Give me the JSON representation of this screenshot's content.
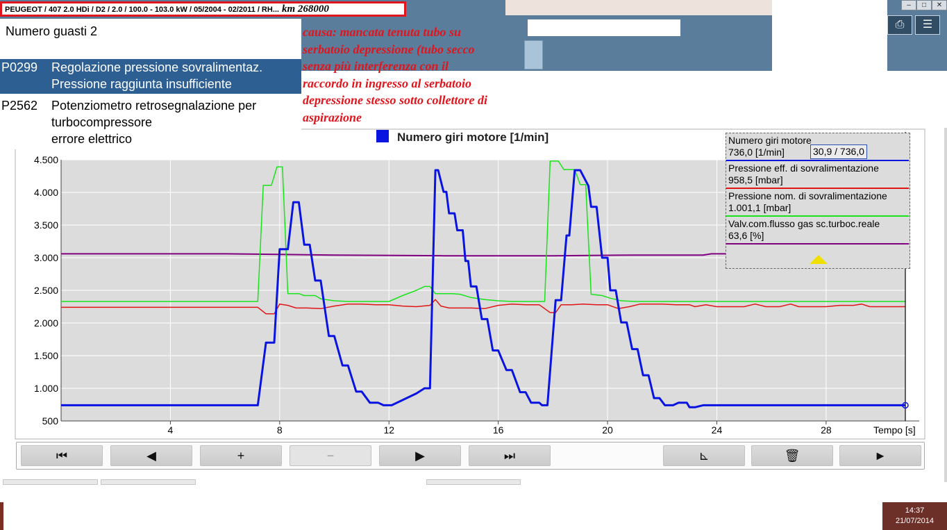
{
  "vehicle_header": {
    "text": "PEUGEOT / 407 2.0 HDi / D2 / 2.0 / 100.0 - 103.0 kW / 05/2004 - 02/2011 / RH...",
    "km": "km 268000"
  },
  "faults": {
    "count_label": "Numero guasti 2",
    "items": [
      {
        "code": "P0299",
        "line1": "Regolazione pressione sovralimentaz.",
        "line2": "Pressione raggiunta insufficiente",
        "selected": true
      },
      {
        "code": "P2562",
        "line1": "Potenziometro retrosegnalazione per turbocompressore",
        "line2": "errore elettrico",
        "selected": false
      }
    ]
  },
  "annotation": {
    "lines": [
      "causa: mancata tenuta tubo su",
      "serbatoio depressione (tubo secco",
      "senza più interferenza con il",
      "raccordo in ingresso al serbatoio",
      "depressione stesso sotto collettore di",
      "aspirazione"
    ],
    "color": "#e0151d"
  },
  "chart_data": {
    "type": "line",
    "title": "Numero giri motore [1/min]",
    "title_marker_color": "#0a14e0",
    "xlabel": "Tempo [s]",
    "ylabel": "",
    "xlim": [
      0,
      30.9
    ],
    "ylim": [
      500,
      4500
    ],
    "xticks": [
      4,
      8,
      12,
      16,
      20,
      24,
      28
    ],
    "yticks": [
      500,
      1000,
      1500,
      2000,
      2500,
      3000,
      3500,
      4000,
      4500
    ],
    "ytick_labels": [
      "500",
      "1.000",
      "1.500",
      "2.000",
      "2.500",
      "3.000",
      "3.500",
      "4.000",
      "4.500"
    ],
    "grid": true,
    "cursor_x": 30.9,
    "series": [
      {
        "name": "Numero giri motore",
        "color": "#0a14e0",
        "width": 3,
        "points": [
          [
            0,
            740
          ],
          [
            7.2,
            740
          ],
          [
            7.5,
            1700
          ],
          [
            7.8,
            1700
          ],
          [
            8.0,
            3130
          ],
          [
            8.3,
            3130
          ],
          [
            8.5,
            3850
          ],
          [
            8.7,
            3850
          ],
          [
            8.9,
            3200
          ],
          [
            9.1,
            3200
          ],
          [
            9.3,
            2650
          ],
          [
            9.5,
            2650
          ],
          [
            9.8,
            1800
          ],
          [
            10.0,
            1800
          ],
          [
            10.3,
            1350
          ],
          [
            10.5,
            1350
          ],
          [
            10.8,
            950
          ],
          [
            11.0,
            950
          ],
          [
            11.3,
            780
          ],
          [
            11.6,
            780
          ],
          [
            11.8,
            740
          ],
          [
            12.1,
            740
          ],
          [
            12.5,
            820
          ],
          [
            13.0,
            920
          ],
          [
            13.3,
            1000
          ],
          [
            13.5,
            1000
          ],
          [
            13.7,
            4340
          ],
          [
            13.8,
            4340
          ],
          [
            14.0,
            4010
          ],
          [
            14.1,
            4010
          ],
          [
            14.2,
            3680
          ],
          [
            14.4,
            3680
          ],
          [
            14.5,
            3420
          ],
          [
            14.7,
            3420
          ],
          [
            14.8,
            2950
          ],
          [
            14.9,
            2950
          ],
          [
            15.0,
            2560
          ],
          [
            15.2,
            2560
          ],
          [
            15.4,
            2060
          ],
          [
            15.6,
            2060
          ],
          [
            15.8,
            1580
          ],
          [
            16.0,
            1580
          ],
          [
            16.3,
            1280
          ],
          [
            16.5,
            1280
          ],
          [
            16.8,
            940
          ],
          [
            17.0,
            940
          ],
          [
            17.2,
            780
          ],
          [
            17.5,
            780
          ],
          [
            17.6,
            740
          ],
          [
            17.8,
            740
          ],
          [
            18.1,
            2350
          ],
          [
            18.3,
            2350
          ],
          [
            18.5,
            3340
          ],
          [
            18.6,
            3340
          ],
          [
            18.8,
            4340
          ],
          [
            19.0,
            4340
          ],
          [
            19.3,
            4100
          ],
          [
            19.4,
            3780
          ],
          [
            19.6,
            3780
          ],
          [
            19.8,
            3000
          ],
          [
            20.0,
            3000
          ],
          [
            20.1,
            2500
          ],
          [
            20.3,
            2500
          ],
          [
            20.5,
            2010
          ],
          [
            20.7,
            2010
          ],
          [
            20.9,
            1600
          ],
          [
            21.1,
            1600
          ],
          [
            21.3,
            1200
          ],
          [
            21.5,
            1200
          ],
          [
            21.7,
            850
          ],
          [
            21.9,
            850
          ],
          [
            22.1,
            740
          ],
          [
            22.4,
            740
          ],
          [
            22.6,
            780
          ],
          [
            22.9,
            780
          ],
          [
            23.0,
            710
          ],
          [
            23.2,
            710
          ],
          [
            23.5,
            740
          ],
          [
            30.9,
            740
          ]
        ]
      },
      {
        "name": "Pressione eff. di sovralimentazione",
        "color": "#e01515",
        "width": 1.5,
        "points": [
          [
            0,
            2240
          ],
          [
            7.2,
            2240
          ],
          [
            7.5,
            2140
          ],
          [
            7.8,
            2140
          ],
          [
            8.0,
            2290
          ],
          [
            8.3,
            2270
          ],
          [
            8.6,
            2230
          ],
          [
            9.0,
            2230
          ],
          [
            9.5,
            2220
          ],
          [
            10.0,
            2260
          ],
          [
            10.5,
            2290
          ],
          [
            11.0,
            2290
          ],
          [
            11.5,
            2280
          ],
          [
            12.0,
            2280
          ],
          [
            12.5,
            2260
          ],
          [
            13.0,
            2250
          ],
          [
            13.5,
            2270
          ],
          [
            13.7,
            2360
          ],
          [
            13.9,
            2260
          ],
          [
            14.2,
            2230
          ],
          [
            14.6,
            2230
          ],
          [
            15.0,
            2230
          ],
          [
            15.5,
            2220
          ],
          [
            16.0,
            2270
          ],
          [
            16.5,
            2290
          ],
          [
            17.0,
            2280
          ],
          [
            17.5,
            2280
          ],
          [
            17.7,
            2220
          ],
          [
            17.9,
            2160
          ],
          [
            18.1,
            2160
          ],
          [
            18.3,
            2280
          ],
          [
            18.7,
            2280
          ],
          [
            19.1,
            2290
          ],
          [
            19.6,
            2280
          ],
          [
            20.0,
            2280
          ],
          [
            20.4,
            2220
          ],
          [
            20.8,
            2250
          ],
          [
            21.2,
            2290
          ],
          [
            21.6,
            2290
          ],
          [
            22.0,
            2290
          ],
          [
            22.5,
            2280
          ],
          [
            23.0,
            2280
          ],
          [
            23.2,
            2250
          ],
          [
            23.6,
            2280
          ],
          [
            24.0,
            2250
          ],
          [
            25.0,
            2250
          ],
          [
            25.4,
            2290
          ],
          [
            25.8,
            2250
          ],
          [
            26.3,
            2250
          ],
          [
            26.7,
            2290
          ],
          [
            27.0,
            2250
          ],
          [
            28.0,
            2250
          ],
          [
            28.5,
            2270
          ],
          [
            29.0,
            2270
          ],
          [
            29.3,
            2290
          ],
          [
            29.6,
            2250
          ],
          [
            30.9,
            2250
          ]
        ]
      },
      {
        "name": "Pressione nom. di sovralimentazione",
        "color": "#19e319",
        "width": 1.5,
        "points": [
          [
            0,
            2330
          ],
          [
            7.2,
            2330
          ],
          [
            7.4,
            4110
          ],
          [
            7.7,
            4110
          ],
          [
            7.9,
            4390
          ],
          [
            8.1,
            4390
          ],
          [
            8.3,
            2450
          ],
          [
            8.7,
            2450
          ],
          [
            8.9,
            2420
          ],
          [
            9.3,
            2420
          ],
          [
            9.5,
            2370
          ],
          [
            10.0,
            2340
          ],
          [
            10.5,
            2330
          ],
          [
            11.0,
            2330
          ],
          [
            11.5,
            2330
          ],
          [
            12.0,
            2330
          ],
          [
            12.5,
            2420
          ],
          [
            13.0,
            2500
          ],
          [
            13.3,
            2560
          ],
          [
            13.5,
            2560
          ],
          [
            13.7,
            2450
          ],
          [
            14.3,
            2450
          ],
          [
            14.6,
            2440
          ],
          [
            15.0,
            2390
          ],
          [
            15.5,
            2360
          ],
          [
            16.0,
            2340
          ],
          [
            16.5,
            2330
          ],
          [
            17.0,
            2330
          ],
          [
            17.5,
            2330
          ],
          [
            17.7,
            2330
          ],
          [
            17.9,
            4480
          ],
          [
            18.2,
            4480
          ],
          [
            18.4,
            4350
          ],
          [
            18.8,
            4350
          ],
          [
            19.0,
            4120
          ],
          [
            19.2,
            4120
          ],
          [
            19.4,
            2440
          ],
          [
            19.8,
            2420
          ],
          [
            20.1,
            2380
          ],
          [
            20.5,
            2340
          ],
          [
            21.0,
            2330
          ],
          [
            25.0,
            2330
          ],
          [
            30.9,
            2330
          ]
        ]
      },
      {
        "name": "Valv.com.flusso gas sc.turboc.reale",
        "color": "#800080",
        "width": 2,
        "points": [
          [
            0,
            3060
          ],
          [
            6.0,
            3060
          ],
          [
            10.0,
            3040
          ],
          [
            14.0,
            3030
          ],
          [
            18.0,
            3030
          ],
          [
            21.0,
            3040
          ],
          [
            23.5,
            3040
          ],
          [
            23.8,
            3060
          ],
          [
            30.9,
            3060
          ]
        ]
      }
    ]
  },
  "legend": {
    "items": [
      {
        "name": "Numero giri motore",
        "value": "736,0 [1/min]",
        "color": "#0a14e0"
      },
      {
        "name": "Pressione eff. di sovralimentazione",
        "value": "958,5 [mbar]",
        "color": "#e01515"
      },
      {
        "name": "Pressione nom. di sovralimentazione",
        "value": "1.001,1 [mbar]",
        "color": "#19e319"
      },
      {
        "name": "Valv.com.flusso gas sc.turboc.reale",
        "value": "63,6 [%]",
        "color": "#800080"
      }
    ],
    "cursor_readout": "30,9 / 736,0"
  },
  "toolbar": {
    "buttons": [
      {
        "name": "first-button",
        "icon": "skip-first-icon",
        "glyph": "⏮",
        "enabled": true
      },
      {
        "name": "prev-button",
        "icon": "arrow-left-icon",
        "glyph": "◀",
        "enabled": true
      },
      {
        "name": "zoom-in-button",
        "icon": "plus-icon",
        "glyph": "+",
        "enabled": true
      },
      {
        "name": "zoom-out-button",
        "icon": "minus-icon",
        "glyph": "−",
        "enabled": false
      },
      {
        "name": "next-button",
        "icon": "arrow-right-icon",
        "glyph": "▶",
        "enabled": true
      },
      {
        "name": "last-button",
        "icon": "skip-last-icon",
        "glyph": "⏭",
        "enabled": true
      },
      {
        "name": "chart-settings-button",
        "icon": "chart-axis-icon",
        "glyph": "⊾",
        "enabled": true
      },
      {
        "name": "delete-button",
        "icon": "trash-icon",
        "glyph": "🗑",
        "enabled": true
      },
      {
        "name": "play-button",
        "icon": "play-icon",
        "glyph": "►",
        "enabled": true
      }
    ]
  },
  "window": {
    "minimize": "–",
    "maximize": "□",
    "close": "✕"
  },
  "clock": {
    "time": "14:37",
    "date": "21/07/2014"
  }
}
